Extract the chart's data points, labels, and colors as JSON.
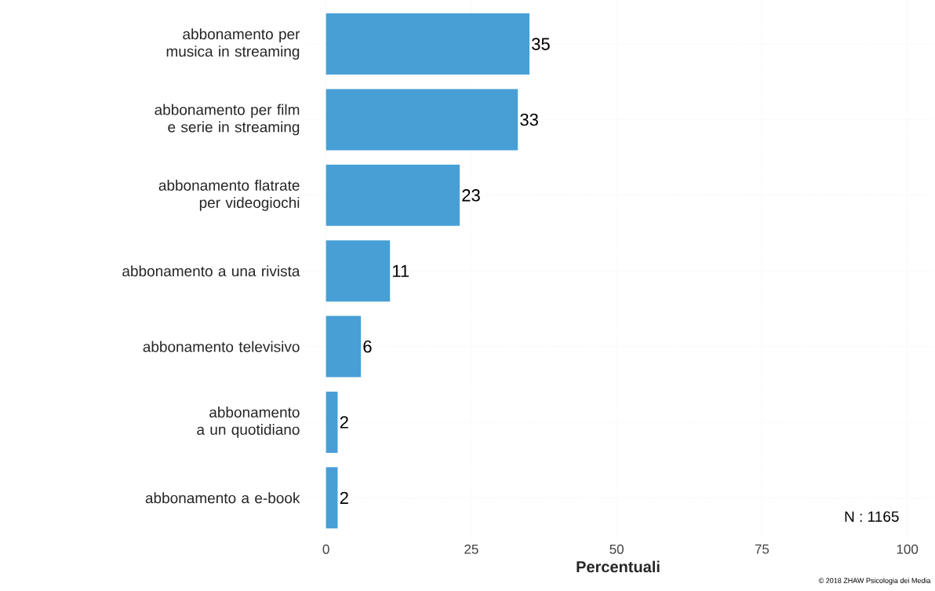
{
  "chart_data": {
    "type": "bar",
    "orientation": "horizontal",
    "xlabel": "Percentuali",
    "categories": [
      "abbonamento per musica in streaming",
      "abbonamento per film e serie in streaming",
      "abbonamento flatrate per videogiochi",
      "abbonamento a una rivista",
      "abbonamento televisivo",
      "abbonamento a un quotidiano",
      "abbonamento a e-book"
    ],
    "values": [
      35,
      33,
      23,
      11,
      6,
      2,
      2
    ],
    "color": "#479fd6",
    "xlim": [
      -4,
      104.5
    ],
    "xticks": [
      0,
      25,
      50,
      75,
      100
    ],
    "grid": true,
    "data_labels": true,
    "annotations": [
      "N : 1165",
      "© 2018 ZHAW Psicologia dei Media"
    ]
  }
}
